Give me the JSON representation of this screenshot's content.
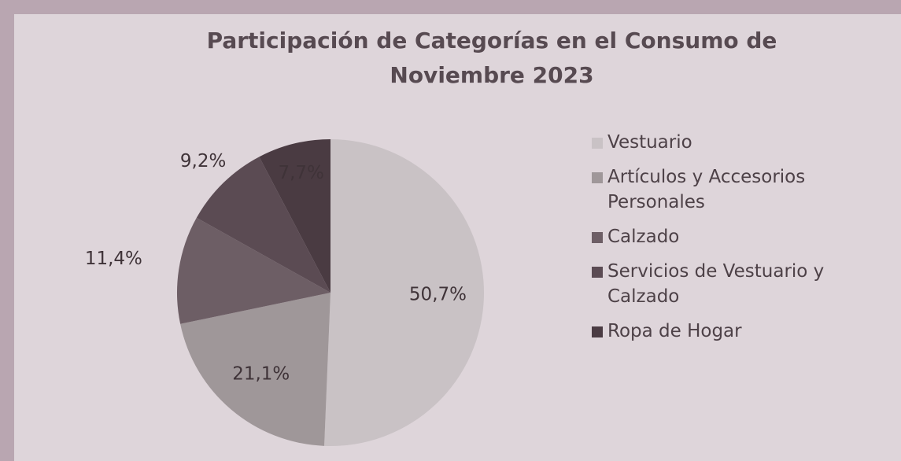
{
  "chart_data": {
    "type": "pie",
    "title": "Participación de Categorías en el Consumo de Noviembre 2023",
    "categories": [
      "Vestuario",
      "Artículos y Accesorios Personales",
      "Calzado",
      "Servicios de Vestuario y Calzado",
      "Ropa de Hogar"
    ],
    "values": [
      50.7,
      21.1,
      11.4,
      9.2,
      7.7
    ],
    "value_labels": [
      "50,7%",
      "21,1%",
      "11,4%",
      "9,2%",
      "7,7%"
    ],
    "colors": [
      "#c9c2c5",
      "#9f9799",
      "#6d5e65",
      "#5b4b53",
      "#4a3b42"
    ],
    "legend": "right"
  }
}
